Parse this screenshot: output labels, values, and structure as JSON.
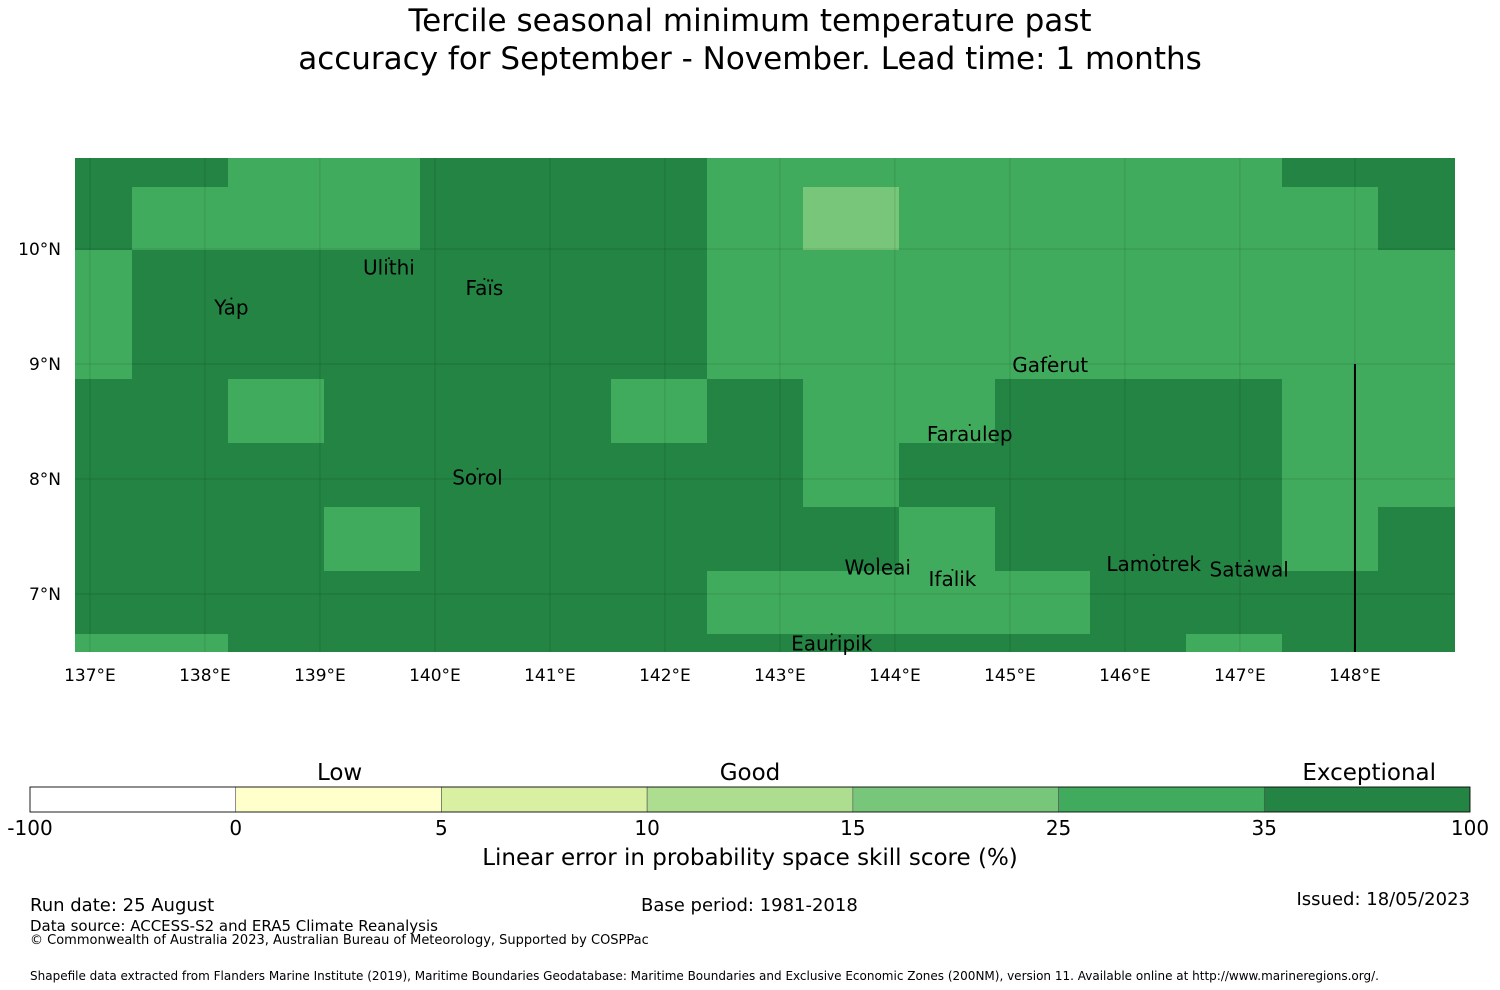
{
  "title": {
    "line1": "Tercile seasonal minimum temperature past",
    "line2": "accuracy for September - November. Lead time: 1 months"
  },
  "map": {
    "x_ticks": [
      "137°E",
      "138°E",
      "139°E",
      "140°E",
      "141°E",
      "142°E",
      "143°E",
      "144°E",
      "145°E",
      "146°E",
      "147°E",
      "148°E"
    ],
    "y_ticks": [
      "10°N",
      "9°N",
      "8°N",
      "7°N"
    ],
    "islands": [
      {
        "name": "Ulithi",
        "lon": 139.6,
        "lat": 9.85
      },
      {
        "name": "Faïs",
        "lon": 140.43,
        "lat": 9.67
      },
      {
        "name": "Yap",
        "lon": 138.23,
        "lat": 9.5
      },
      {
        "name": "Gaferut",
        "lon": 145.35,
        "lat": 9.0
      },
      {
        "name": "Faraulep",
        "lon": 144.65,
        "lat": 8.4
      },
      {
        "name": "Sorol",
        "lon": 140.37,
        "lat": 8.02
      },
      {
        "name": "Woleai",
        "lon": 143.85,
        "lat": 7.24
      },
      {
        "name": "Ifalik",
        "lon": 144.5,
        "lat": 7.14
      },
      {
        "name": "Lamotrek",
        "lon": 146.25,
        "lat": 7.27
      },
      {
        "name": "Satawal",
        "lon": 147.08,
        "lat": 7.22
      },
      {
        "name": "Eauripik",
        "lon": 143.45,
        "lat": 6.58
      }
    ],
    "skill_grid_description": "LEPS skill category per grid cell (rows top to bottom, columns 137E to 149E)",
    "colors": {
      "exceptional": "#238443",
      "good_high": "#41ab5d",
      "good_mid": "#78c679",
      "boundary_line": "#000000"
    }
  },
  "colorbar": {
    "categories": [
      {
        "label": "Low",
        "pos": 0.215
      },
      {
        "label": "Good",
        "pos": 0.5
      },
      {
        "label": "Exceptional",
        "pos": 0.93
      }
    ],
    "ticks": [
      "-100",
      "0",
      "5",
      "10",
      "15",
      "25",
      "35",
      "100"
    ],
    "colors": [
      "#ffffff",
      "#ffffcc",
      "#d9f0a3",
      "#addd8e",
      "#78c679",
      "#41ab5d",
      "#238443"
    ],
    "label": "Linear error in probability space skill score (%)"
  },
  "footer": {
    "run_date": "Run date: 25 August",
    "base_period": "Base period: 1981-2018",
    "issued": "Issued: 18/05/2023",
    "data_source": "Data source: ACCESS-S2 and ERA5 Climate Reanalysis",
    "copyright": "© Commonwealth of Australia 2023, Australian Bureau of Meteorology, Supported by COSPPac",
    "shapefile": "Shapefile data extracted from Flanders Marine Institute (2019), Maritime Boundaries Geodatabase: Maritime Boundaries and Exclusive Economic Zones (200NM), version 11. Available online at http://www.marineregions.org/."
  }
}
